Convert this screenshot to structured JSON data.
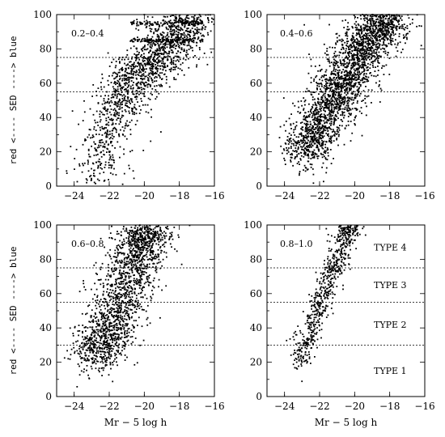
{
  "chart_data": [
    {
      "type": "scatter",
      "panel": "top-left",
      "annotation": "0.2–0.4",
      "xlabel": "",
      "ylabel": "red <---- SED ----> blue",
      "xlim": [
        -25,
        -16
      ],
      "ylim": [
        0,
        100
      ],
      "xticks": [
        "-24",
        "-22",
        "-20",
        "-18",
        "-16"
      ],
      "yticks": [
        "0",
        "20",
        "40",
        "60",
        "80",
        "100"
      ],
      "reference_lines": [
        55,
        75
      ],
      "density_profile": {
        "description": "scattered points in data units (estimated)",
        "x": [
          -22.8,
          -22.5,
          -22.3,
          -22.1,
          -21.9,
          -21.7,
          -21.5,
          -21.3,
          -21.1,
          -20.9,
          -20.7,
          -20.5,
          -20.3,
          -20.1,
          -19.9,
          -19.7,
          -19.5,
          -19.3,
          -19.1,
          -18.9,
          -18.7,
          -18.5,
          -18.3,
          -18.1,
          -17.9,
          -17.7,
          -17.5,
          -17.3,
          -17.1
        ],
        "y": [
          8,
          14,
          22,
          30,
          36,
          42,
          46,
          50,
          55,
          58,
          60,
          63,
          66,
          68,
          70,
          72,
          74,
          76,
          78,
          80,
          82,
          84,
          86,
          88,
          90,
          92,
          94,
          96,
          97
        ]
      },
      "n_points": 1600
    },
    {
      "type": "scatter",
      "panel": "top-right",
      "annotation": "0.4–0.6",
      "xlabel": "",
      "ylabel": "",
      "xlim": [
        -25,
        -16
      ],
      "ylim": [
        0,
        100
      ],
      "xticks": [
        "-24",
        "-22",
        "-20",
        "-18",
        "-16"
      ],
      "yticks": [
        "0",
        "20",
        "40",
        "60",
        "80",
        "100"
      ],
      "reference_lines": [
        55,
        75
      ],
      "density_profile": {
        "description": "scattered points in data units (estimated)",
        "x": [
          -23.0,
          -22.6,
          -22.2,
          -21.8,
          -21.4,
          -21.0,
          -20.6,
          -20.2,
          -19.8,
          -19.4,
          -19.0,
          -18.6,
          -18.2
        ],
        "y": [
          18,
          25,
          32,
          40,
          48,
          55,
          62,
          68,
          75,
          82,
          88,
          94,
          98
        ]
      },
      "n_points": 2600
    },
    {
      "type": "scatter",
      "panel": "bottom-left",
      "annotation": "0.6–0.8",
      "xlabel": "Mr − 5 log h",
      "ylabel": "red <---- SED ----> blue",
      "xlim": [
        -25,
        -16
      ],
      "ylim": [
        0,
        100
      ],
      "xticks": [
        "-24",
        "-22",
        "-20",
        "-18",
        "-16"
      ],
      "yticks": [
        "0",
        "20",
        "40",
        "60",
        "80",
        "100"
      ],
      "reference_lines": [
        30,
        55,
        75
      ],
      "density_profile": {
        "description": "scattered points in data units (estimated)",
        "x": [
          -23.0,
          -22.6,
          -22.2,
          -21.8,
          -21.4,
          -21.0,
          -20.6,
          -20.2,
          -19.9
        ],
        "y": [
          22,
          28,
          34,
          44,
          55,
          66,
          76,
          86,
          95
        ]
      },
      "n_points": 1800
    },
    {
      "type": "scatter",
      "panel": "bottom-right",
      "annotation": "0.8–1.0",
      "xlabel": "Mr − 5 log h",
      "ylabel": "",
      "xlim": [
        -25,
        -16
      ],
      "ylim": [
        0,
        100
      ],
      "xticks": [
        "-24",
        "-22",
        "-20",
        "-18",
        "-16"
      ],
      "yticks": [
        "0",
        "20",
        "40",
        "60",
        "80",
        "100"
      ],
      "reference_lines": [
        30,
        55,
        75
      ],
      "type_labels": [
        {
          "text": "TYPE 4",
          "y": 87
        },
        {
          "text": "TYPE 3",
          "y": 65
        },
        {
          "text": "TYPE 2",
          "y": 42
        },
        {
          "text": "TYPE 1",
          "y": 15
        }
      ],
      "density_profile": {
        "description": "scattered points in data units (estimated)",
        "x": [
          -23.2,
          -22.9,
          -22.6,
          -22.3,
          -22.0,
          -21.7,
          -21.4,
          -21.1,
          -20.8,
          -20.5,
          -20.2
        ],
        "y": [
          20,
          28,
          36,
          45,
          54,
          62,
          70,
          78,
          86,
          93,
          99
        ]
      },
      "n_points": 700
    }
  ]
}
